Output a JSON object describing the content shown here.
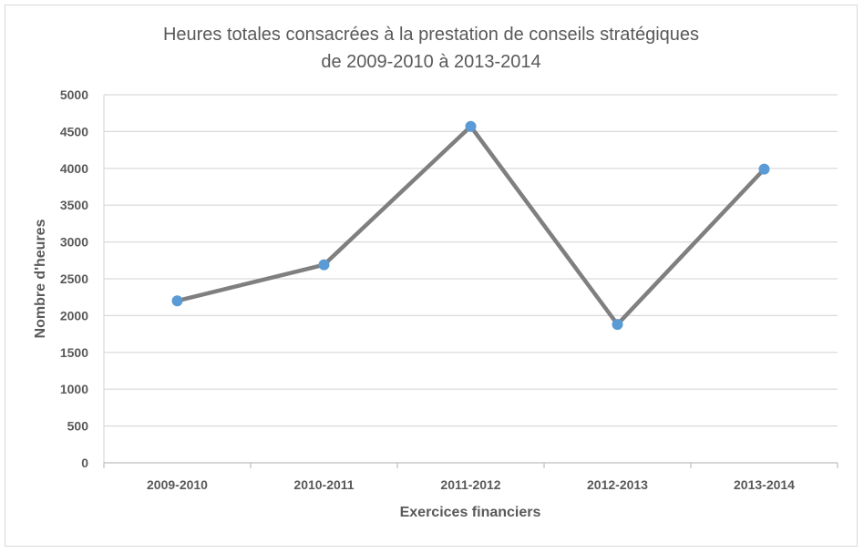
{
  "chart_data": {
    "type": "line",
    "title_lines": [
      "Heures totales consacrées à la prestation de conseils stratégiques",
      "de 2009-2010 à 2013-2014"
    ],
    "xlabel": "Exercices financiers",
    "ylabel": "Nombre d'heures",
    "categories": [
      "2009-2010",
      "2010-2011",
      "2011-2012",
      "2012-2013",
      "2013-2014"
    ],
    "series": [
      {
        "values": [
          2200,
          2690,
          4570,
          1880,
          3990
        ]
      }
    ],
    "ylim": [
      0,
      5000
    ],
    "yticks": [
      0,
      500,
      1000,
      1500,
      2000,
      2500,
      3000,
      3500,
      4000,
      4500,
      5000
    ],
    "grid": true,
    "legend": "none",
    "colors": {
      "line": "#7f7f7f",
      "marker": "#5b9bd5",
      "grid": "#d9d9d9",
      "axis": "#bfbfbf",
      "text": "#595959"
    }
  }
}
